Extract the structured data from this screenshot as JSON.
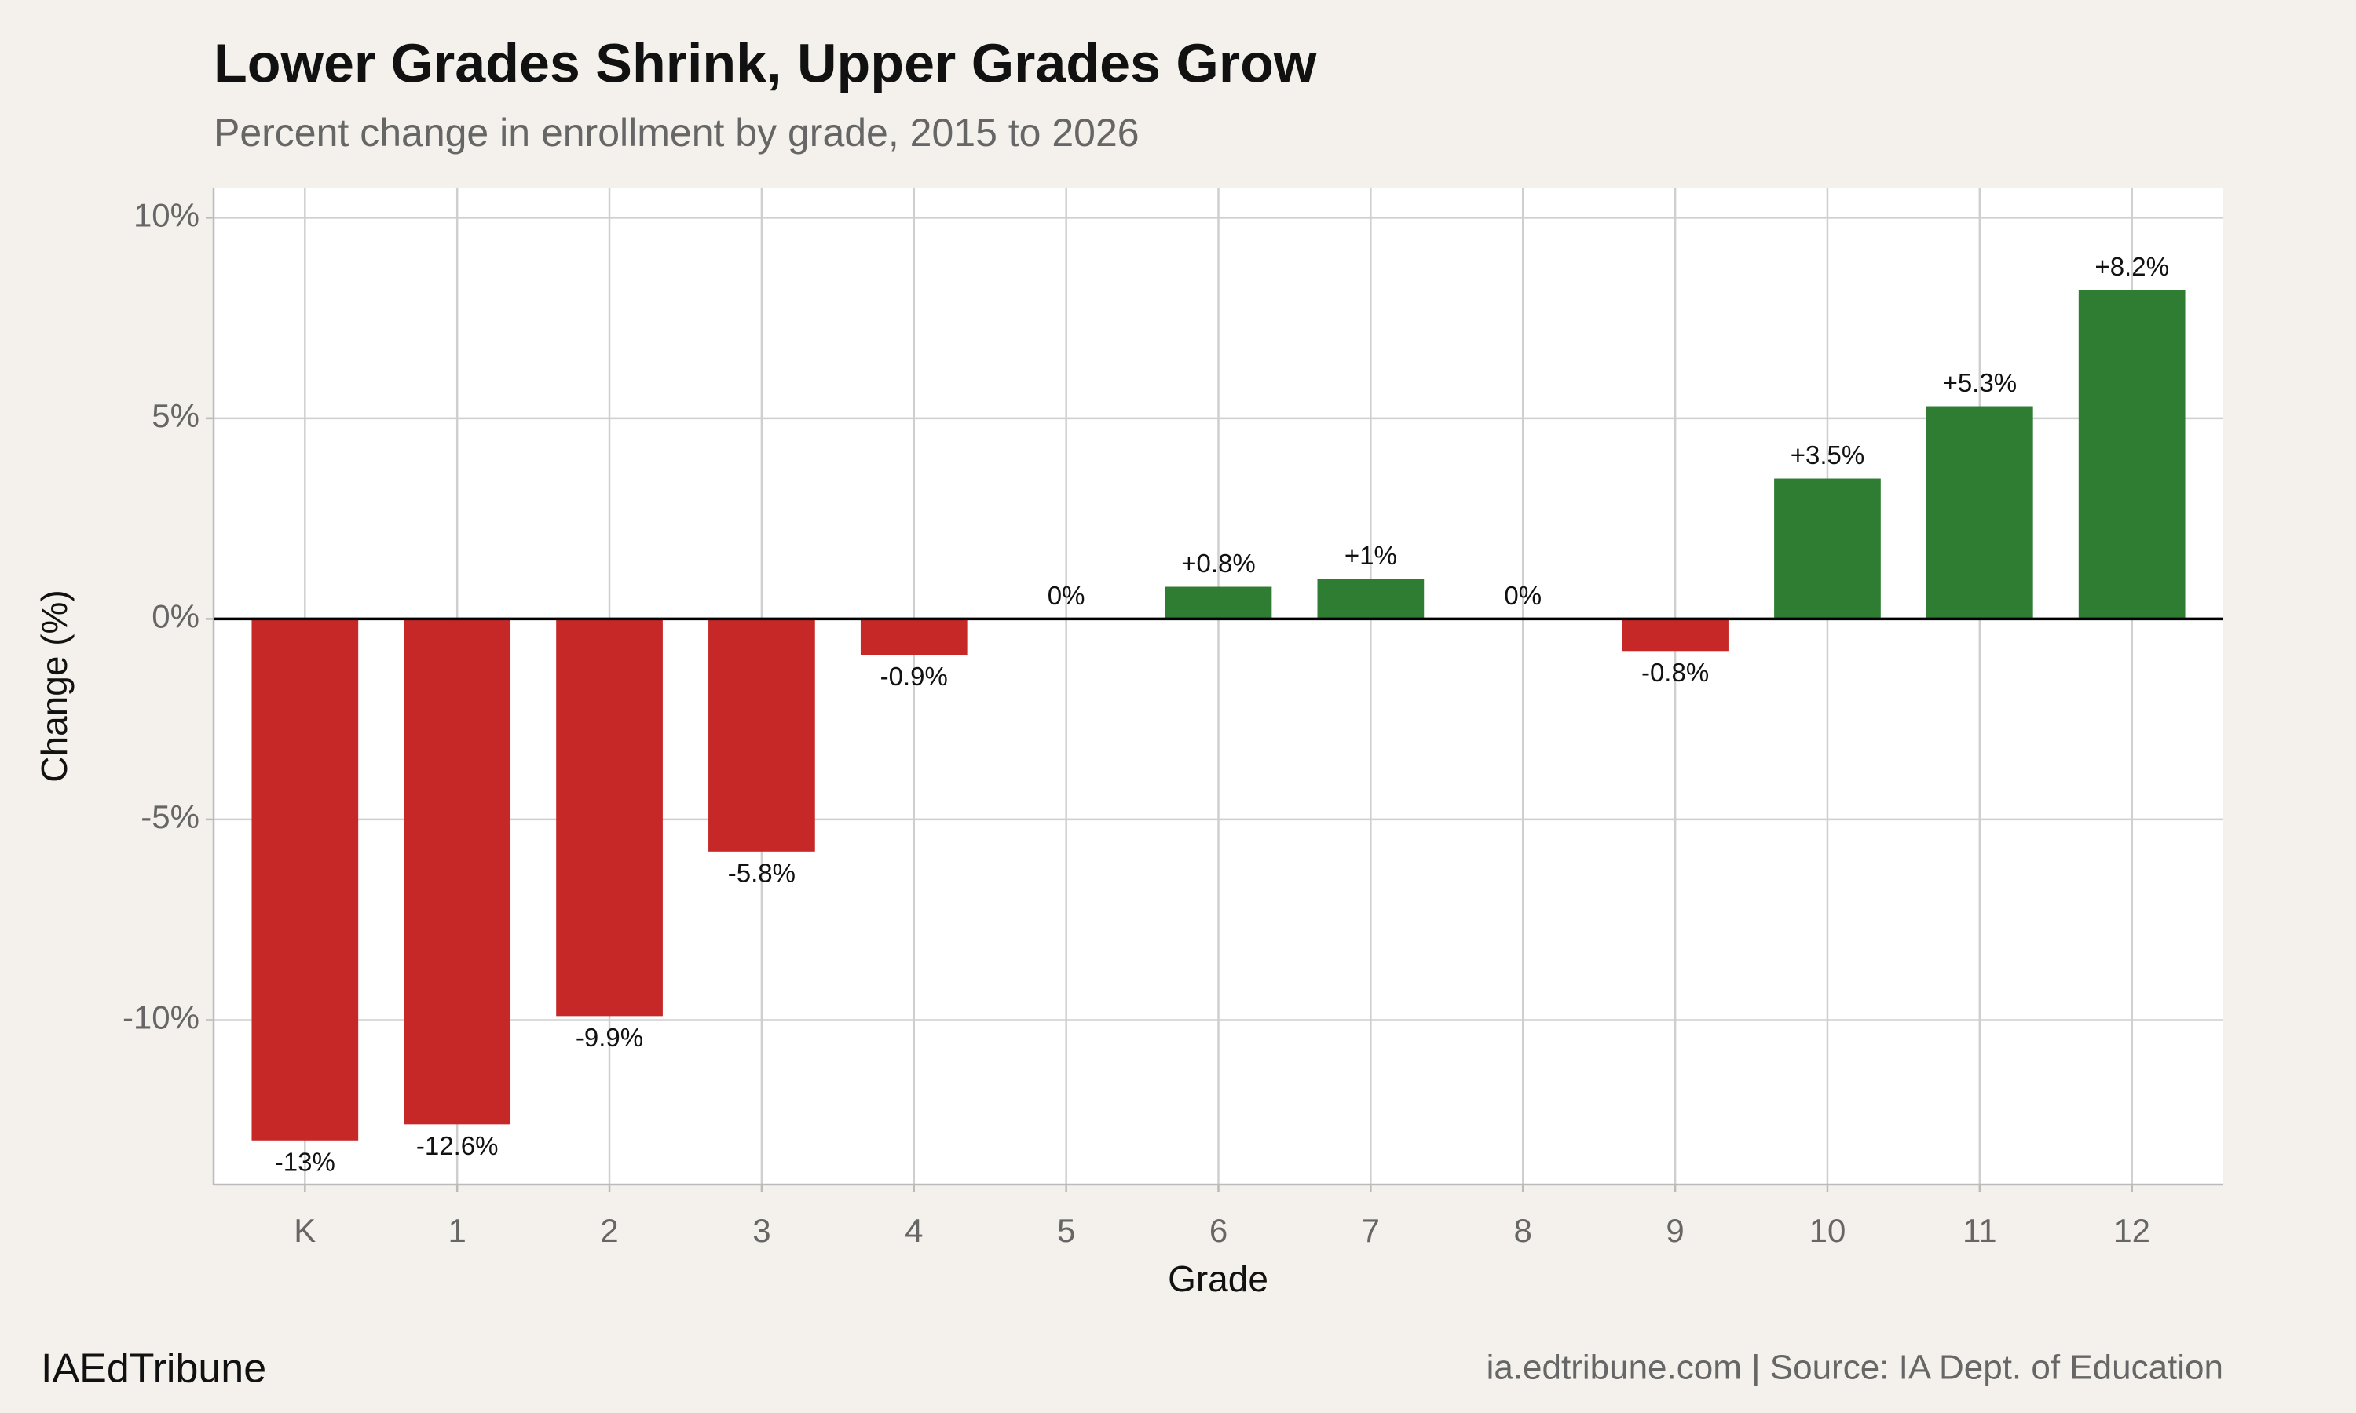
{
  "chart_data": {
    "type": "bar",
    "title": "Lower Grades Shrink, Upper Grades Grow",
    "subtitle": "Percent change in enrollment by grade, 2015 to 2026",
    "x_label": "Grade",
    "y_label": "Change (%)",
    "categories": [
      "K",
      "1",
      "2",
      "3",
      "4",
      "5",
      "6",
      "7",
      "8",
      "9",
      "10",
      "11",
      "12"
    ],
    "values": [
      -13,
      -12.6,
      -9.9,
      -5.8,
      -0.9,
      0,
      0.8,
      1,
      0,
      -0.8,
      3.5,
      5.3,
      8.2
    ],
    "value_labels": [
      "-13%",
      "-12.6%",
      "-9.9%",
      "-5.8%",
      "-0.9%",
      "0%",
      "+0.8%",
      "+1%",
      "0%",
      "-0.8%",
      "+3.5%",
      "+5.3%",
      "+8.2%"
    ],
    "positive_color": "#2e7d32",
    "negative_color": "#c62828",
    "ylim": [
      -14.1,
      10.75
    ],
    "yticks": [
      {
        "value": -10,
        "label": "-10%"
      },
      {
        "value": -5,
        "label": "-5%"
      },
      {
        "value": 0,
        "label": "0%"
      },
      {
        "value": 5,
        "label": "5%"
      },
      {
        "value": 10,
        "label": "10%"
      }
    ],
    "grid": true
  },
  "footer": {
    "brand": "IAEdTribune",
    "source": "ia.edtribune.com | Source: IA Dept. of Education"
  }
}
